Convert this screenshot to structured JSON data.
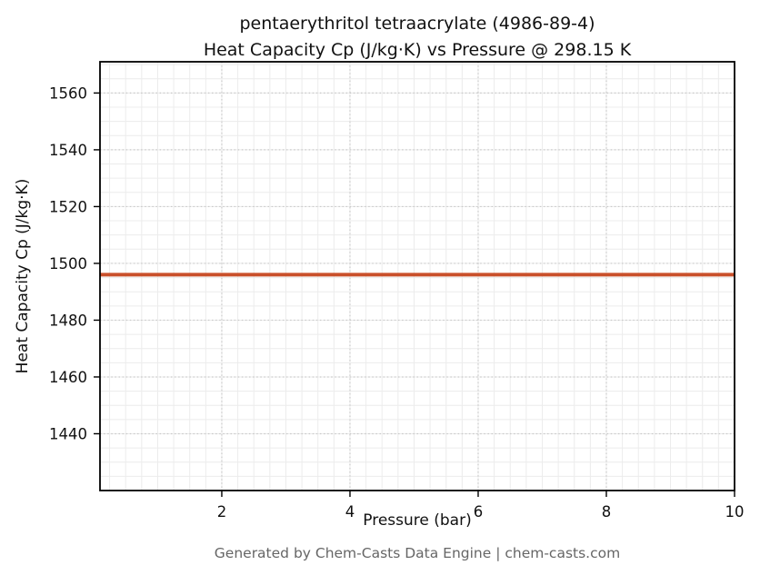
{
  "title": {
    "line1": "pentaerythritol tetraacrylate (4986-89-4)",
    "line2": "Heat Capacity Cp (J/kg·K) vs Pressure @ 298.15 K"
  },
  "footer": "Generated by Chem-Casts Data Engine | chem-casts.com",
  "chart_data": {
    "type": "line",
    "title": "pentaerythritol tetraacrylate (4986-89-4)\nHeat Capacity Cp (J/kg·K) vs Pressure @ 298.15 K",
    "xlabel": "Pressure (bar)",
    "ylabel": "Heat Capacity Cp (J/kg·K)",
    "xlim": [
      0.1,
      10.0
    ],
    "ylim": [
      1420,
      1571
    ],
    "xticks": [
      2,
      4,
      6,
      8,
      10
    ],
    "yticks": [
      1440,
      1460,
      1480,
      1500,
      1520,
      1540,
      1560
    ],
    "x_minor_step": 0.25,
    "y_minor_step": 5,
    "grid": true,
    "legend": "none",
    "series": [
      {
        "name": "Heat Capacity Cp",
        "color": "#c9502b",
        "x": [
          0.1,
          10.0
        ],
        "y": [
          1496,
          1496
        ]
      }
    ]
  },
  "colors": {
    "line": "#c9502b",
    "axis_border": "#000000",
    "minor_grid": "#ececec",
    "major_grid": "#c9c9c9",
    "tick_label": "#111111",
    "footer_text": "#666666"
  }
}
